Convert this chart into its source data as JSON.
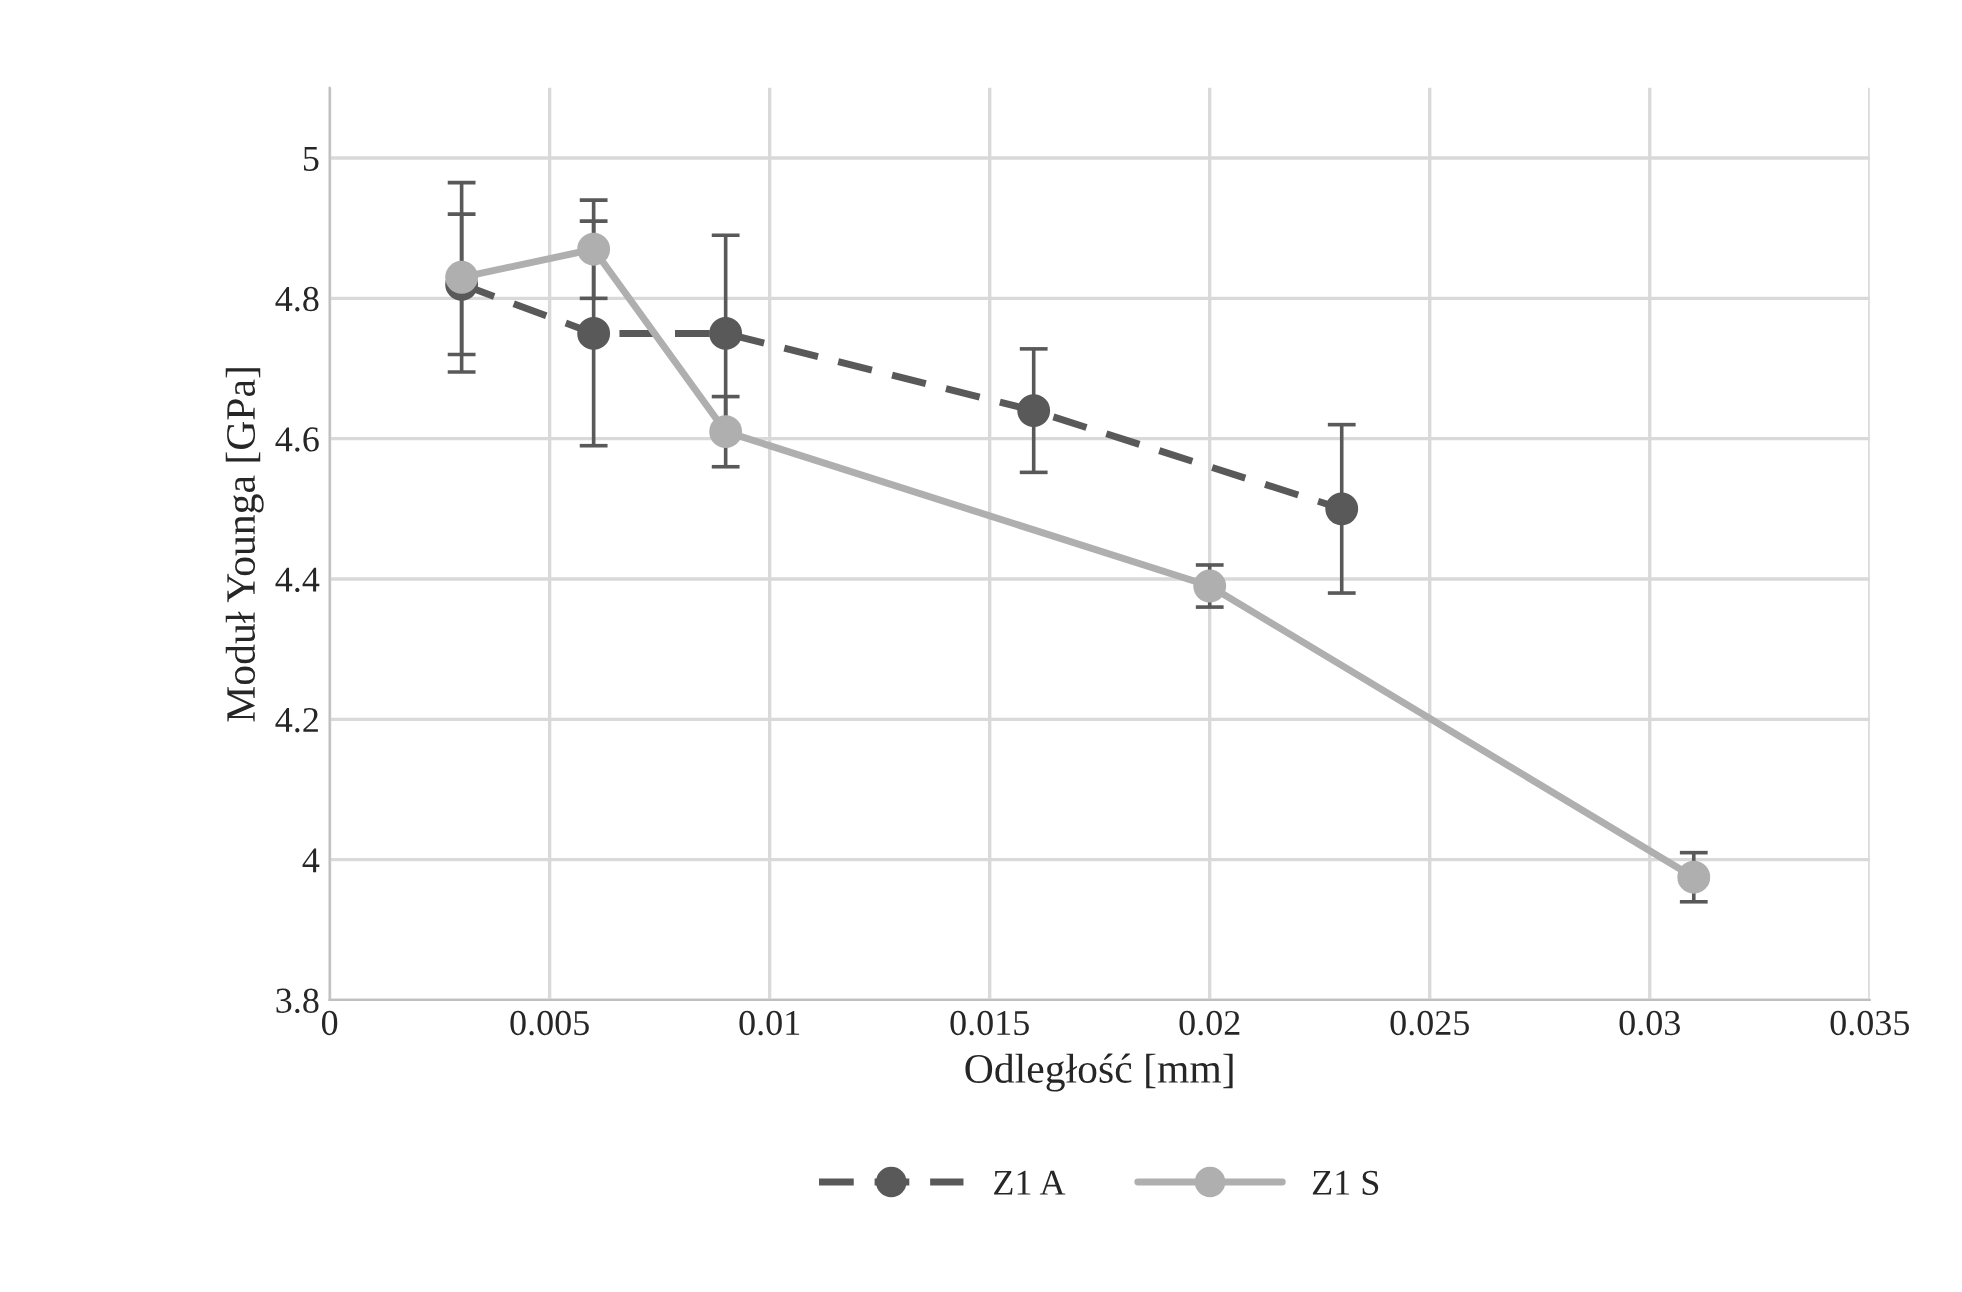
{
  "chart_data": {
    "type": "line",
    "xlabel": "Odległość [mm]",
    "ylabel": "Moduł Younga [GPa]",
    "series": [
      {
        "name": "Z1 A",
        "color": "#595959",
        "line_style": "dashed",
        "marker": "circle",
        "x": [
          0.003,
          0.006,
          0.009,
          0.016,
          0.023
        ],
        "values": [
          4.82,
          4.75,
          4.75,
          4.64,
          4.5
        ],
        "errors": [
          0.1,
          0.16,
          0.14,
          0.088,
          0.12
        ]
      },
      {
        "name": "Z1 S",
        "color": "#afafaf",
        "line_style": "solid",
        "marker": "circle",
        "x": [
          0.003,
          0.006,
          0.009,
          0.02,
          0.031
        ],
        "values": [
          4.83,
          4.87,
          4.61,
          4.39,
          3.975
        ],
        "errors": [
          0.135,
          0.07,
          0.05,
          0.03,
          0.035
        ]
      }
    ],
    "xlim": [
      0,
      0.035
    ],
    "xticks": [
      0,
      0.005,
      0.01,
      0.015,
      0.02,
      0.025,
      0.03,
      0.035
    ],
    "ylim": [
      3.8,
      5.1
    ],
    "yticks": [
      3.8,
      4,
      4.2,
      4.4,
      4.6,
      4.8,
      5
    ],
    "grid": true,
    "legend": "bottom"
  }
}
